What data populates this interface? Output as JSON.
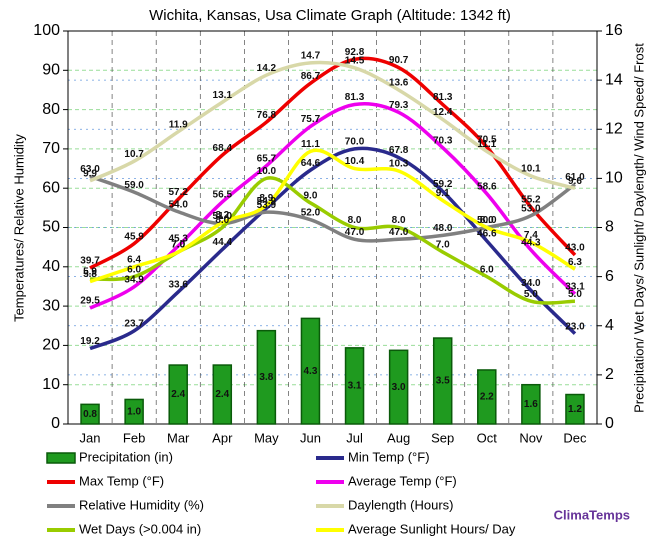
{
  "brand": "ClimaTemps",
  "chart_data": {
    "type": "combo",
    "title": "Wichita, Kansas, Usa Climate Graph (Altitude: 1342 ft)",
    "y_label": "Temperatures/ Relative Humidity",
    "y2_label": "Precipitation/ Wet Days/ Sunlight/ Daylength/ Wind Speed/ Frost",
    "categories": [
      "Jan",
      "Feb",
      "Mar",
      "Apr",
      "May",
      "Jun",
      "Jul",
      "Aug",
      "Sep",
      "Oct",
      "Nov",
      "Dec"
    ],
    "ylim": [
      0,
      100
    ],
    "yticks": [
      0,
      10,
      20,
      30,
      40,
      50,
      60,
      70,
      80,
      90,
      100
    ],
    "y2lim": [
      0,
      16
    ],
    "y2ticks": [
      0,
      2,
      4,
      6,
      8,
      10,
      12,
      14,
      16
    ],
    "grid": true,
    "series": [
      {
        "name": "Precipitation (in)",
        "type": "bar",
        "axis": "y2",
        "color": "#1f9a1f",
        "values": [
          0.8,
          1.0,
          2.4,
          2.4,
          3.8,
          4.3,
          3.1,
          3.0,
          3.5,
          2.2,
          1.6,
          1.2
        ],
        "value_labels": [
          "0.8",
          "1.0",
          "2.4",
          "2.4",
          "3.8",
          "4.3",
          "3.1",
          "3.0",
          "3.5",
          "2.2",
          "1.6",
          "1.2"
        ]
      },
      {
        "name": "Min Temp (°F)",
        "type": "line",
        "color": "#2a2a8c",
        "values": [
          19.2,
          23.7,
          33.6,
          44.4,
          54.9,
          64.6,
          70.0,
          67.8,
          59.2,
          46.6,
          34.0,
          23.0
        ],
        "value_labels": [
          "19.2",
          "23.7",
          "33.6",
          "44.4",
          "54.9",
          "64.6",
          "70.0",
          "67.8",
          "59.2",
          "46.6",
          "34.0",
          "23.0"
        ]
      },
      {
        "name": "Max Temp (°F)",
        "type": "line",
        "color": "#ee0000",
        "values": [
          39.7,
          45.9,
          57.2,
          68.4,
          76.8,
          86.7,
          92.8,
          90.7,
          81.3,
          70.5,
          55.2,
          43.0
        ],
        "value_labels": [
          "39.7",
          "45.9",
          "57.2",
          "68.4",
          "76.8",
          "86.7",
          "92.8",
          "90.7",
          "81.3",
          "70.5",
          "55.2",
          "43.0"
        ]
      },
      {
        "name": "Average Temp (°F)",
        "type": "line",
        "color": "#ee00ee",
        "values": [
          29.5,
          34.9,
          45.3,
          56.5,
          65.7,
          75.7,
          81.3,
          79.3,
          70.3,
          58.6,
          44.3,
          33.1
        ],
        "value_labels": [
          "29.5",
          "34.9",
          "45.3",
          "56.5",
          "65.7",
          "75.7",
          "81.3",
          "79.3",
          "70.3",
          "58.6",
          "44.3",
          "33.1"
        ]
      },
      {
        "name": "Relative Humidity (%)",
        "type": "line",
        "color": "#808080",
        "values": [
          63.0,
          59.0,
          54.0,
          51.0,
          53.9,
          52.0,
          47.0,
          47.0,
          48.0,
          50.0,
          53.0,
          61.0
        ],
        "value_labels": [
          "63.0",
          "59.0",
          "54.0",
          "51.0",
          "53.9",
          "52.0",
          "47.0",
          "47.0",
          "48.0",
          "50.0",
          "53.0",
          "61.0"
        ]
      },
      {
        "name": "Daylength (Hours)",
        "type": "line",
        "axis": "y2",
        "color": "#d8d8a8",
        "values": [
          9.9,
          10.7,
          11.9,
          13.1,
          14.2,
          14.7,
          14.5,
          13.6,
          12.4,
          11.1,
          10.1,
          9.6
        ],
        "value_labels": [
          "9.9",
          "10.7",
          "11.9",
          "13.1",
          "14.2",
          "14.7",
          "14.5",
          "13.6",
          "12.4",
          "11.1",
          "10.1",
          "9.6"
        ]
      },
      {
        "name": "Wet Days (>0.004 in)",
        "type": "line",
        "axis": "y2",
        "color": "#99cc00",
        "values": [
          5.9,
          6.0,
          7.0,
          8.0,
          10.0,
          9.0,
          8.0,
          8.0,
          7.0,
          6.0,
          5.0,
          5.0
        ],
        "value_labels": [
          "5.9",
          "6.0",
          "7.0",
          "8.0",
          "10.0",
          "9.0",
          "8.0",
          "8.0",
          "7.0",
          "6.0",
          "5.0",
          "5.0"
        ]
      },
      {
        "name": "Average Sunlight Hours/ Day",
        "type": "line",
        "axis": "y2",
        "color": "#ffff00",
        "values": [
          5.8,
          6.4,
          7.0,
          8.2,
          8.9,
          11.1,
          10.4,
          10.3,
          9.1,
          8.0,
          7.4,
          6.3
        ],
        "value_labels": [
          "5.8",
          "6.4",
          "7.0",
          "8.2",
          "8.9",
          "11.1",
          "10.4",
          "10.3",
          "9.1",
          "8.0",
          "7.4",
          "6.3"
        ]
      }
    ]
  }
}
